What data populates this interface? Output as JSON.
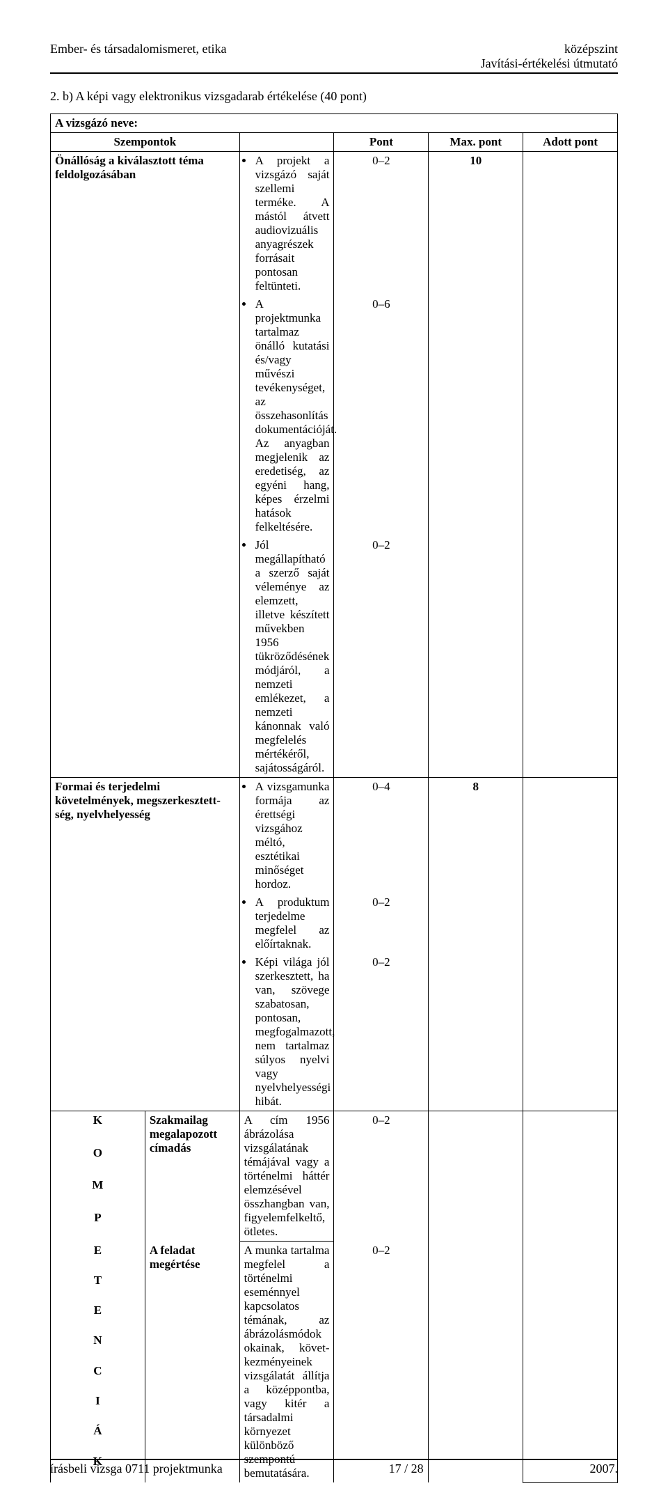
{
  "header": {
    "left": "Ember- és társadalomismeret, etika",
    "right_top": "középszint",
    "right_bottom": "Javítási-értékelési útmutató"
  },
  "section_title": "2. b) A képi vagy elektronikus vizsgadarab értékelése (40 pont)",
  "name_label": "A vizsgázó neve:",
  "columns": {
    "szempontok": "Szempontok",
    "pont": "Pont",
    "max": "Max. pont",
    "adott": "Adott pont"
  },
  "rows": {
    "row1": {
      "criterion": "Önállóság a kiválasztott téma feldolgozásában",
      "bullets": [
        "A projekt a vizsgázó saját szellemi terméke. A mástól átvett audiovizuális anyagrészek forrásait pontosan feltünteti.",
        "A projektmunka tartalmaz önálló kutatási és/vagy művészi tevékenységet, az összehasonlítás dokumentációját. Az anyagban megjelenik az eredetiség, az egyéni hang, képes érzelmi hatások felkeltésére.",
        "Jól megállapítható a szerző saját véleménye az elemzett, illetve készített művekben 1956 tükröződésének módjáról, a nemzeti emlékezet, a nemzeti kánonnak való megfelelés mértékéről, sajátosságáról."
      ],
      "points": [
        "0–2",
        "0–6",
        "0–2"
      ],
      "max": "10"
    },
    "row2": {
      "criterion": "Formai és terjedelmi követelmények, megszerkesztett-ség, nyelvhelyesség",
      "bullets": [
        "A vizsgamunka formája az érettségi vizsgához méltó, esztétikai minőséget hordoz.",
        "A produktum terjedelme megfelel az előírtaknak.",
        "Képi világa jól szerkesztett, ha van, szövege szabatosan, pontosan, megfogalmazott, nem tartalmaz súlyos nyelvi vagy nyelvhelyességi hibát."
      ],
      "points": [
        "0–4",
        "0–2",
        "0–2"
      ],
      "max": "8"
    },
    "row3": {
      "label": "Szakmailag megalapozott címadás",
      "text": "A cím 1956 ábrázolása vizsgálatának témájával vagy a történelmi háttér elemzésével összhangban van, figyelemfelkeltő, ötletes.",
      "point": "0–2"
    },
    "row4": {
      "label": "A feladat megértése",
      "text": "A munka tartalma megfelel a történelmi eseménnyel kapcsolatos témának, az ábrázolásmódok okainak, követ-kezményeinek vizsgálatát állítja a középpontba, vagy kitér a társadalmi környezet különböző szempontú bemutatására.",
      "point": "0–2"
    }
  },
  "komp_letters": [
    "K",
    "O",
    "M",
    "P",
    "E",
    "T",
    "E",
    "N",
    "C",
    "I",
    "Á",
    "K"
  ],
  "footer": {
    "left": "írásbeli vizsga 0711 projektmunka",
    "center": "17 / 28",
    "right": "2007."
  },
  "style": {
    "body_bg": "#ffffff",
    "text_color": "#000000",
    "border_color": "#000000",
    "font_family": "Times New Roman",
    "base_fontsize": 18,
    "table_fontsize": 17
  }
}
